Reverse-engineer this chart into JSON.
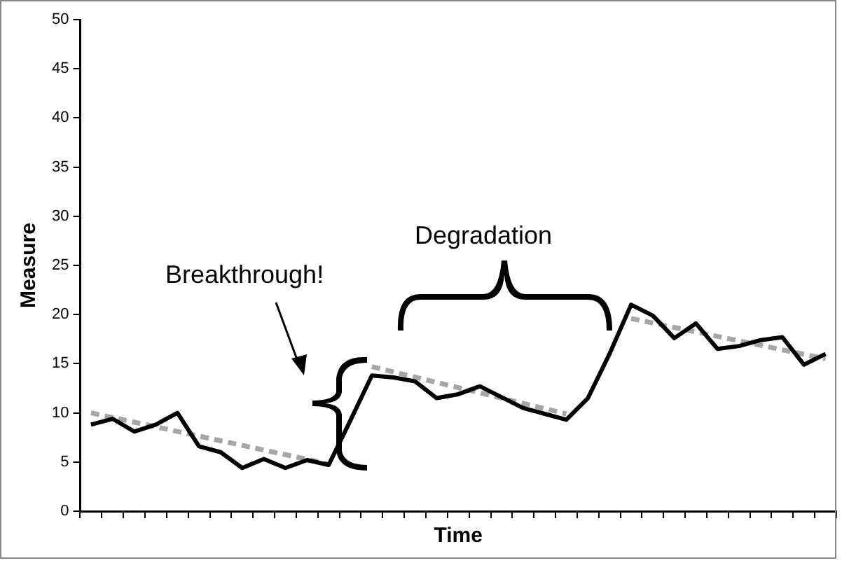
{
  "chart_data": {
    "type": "line",
    "xlabel": "Time",
    "ylabel": "Measure",
    "categories": [
      null,
      null,
      null,
      null,
      null,
      null,
      null,
      null,
      null,
      null,
      null,
      null,
      null,
      null,
      null,
      null,
      null,
      null,
      null,
      null,
      null,
      null,
      null,
      null,
      null,
      null,
      null,
      null,
      null,
      null,
      null,
      null,
      null,
      null,
      null
    ],
    "series": [
      {
        "color": "#000000",
        "line_style": "solid",
        "values": [
          8.8,
          9.4,
          8.1,
          8.8,
          10.0,
          6.6,
          6.0,
          4.4,
          5.3,
          4.4,
          5.2,
          4.7,
          9.2,
          13.8,
          13.6,
          13.2,
          11.5,
          11.9,
          12.7,
          11.6,
          10.5,
          9.9,
          9.3,
          11.5,
          16.0,
          21.0,
          19.9,
          17.6,
          19.1,
          16.5,
          16.8,
          17.4,
          17.7,
          14.9,
          16.0
        ]
      },
      {
        "color": "#a6a6a6",
        "line_style": "dashed",
        "values": [
          10.0,
          null,
          null,
          null,
          null,
          null,
          null,
          null,
          null,
          null,
          null,
          4.8,
          null,
          null,
          null,
          null,
          null,
          null,
          null,
          null,
          null,
          null,
          null,
          null,
          null,
          null,
          null,
          null,
          null,
          null,
          null,
          null,
          null,
          null,
          null
        ]
      },
      {
        "color": "#a6a6a6",
        "line_style": "dashed",
        "values": [
          null,
          null,
          null,
          null,
          null,
          null,
          null,
          null,
          null,
          null,
          null,
          null,
          null,
          14.7,
          null,
          null,
          null,
          null,
          null,
          null,
          null,
          null,
          9.9,
          null,
          null,
          null,
          null,
          null,
          null,
          null,
          null,
          null,
          null,
          null,
          null
        ]
      },
      {
        "color": "#a6a6a6",
        "line_style": "dashed",
        "values": [
          null,
          null,
          null,
          null,
          null,
          null,
          null,
          null,
          null,
          null,
          null,
          null,
          null,
          null,
          null,
          null,
          null,
          null,
          null,
          null,
          null,
          null,
          null,
          null,
          null,
          19.6,
          null,
          null,
          null,
          null,
          null,
          null,
          null,
          null,
          15.5
        ]
      }
    ],
    "annotations": [
      "Breakthrough!",
      "Degradation"
    ],
    "ylim": [
      0,
      50
    ],
    "yticks": [
      0,
      5,
      10,
      15,
      20,
      25,
      30,
      35,
      40,
      45,
      50
    ],
    "grid": false,
    "legend": false,
    "marker": "none",
    "tick_labels": "y"
  }
}
